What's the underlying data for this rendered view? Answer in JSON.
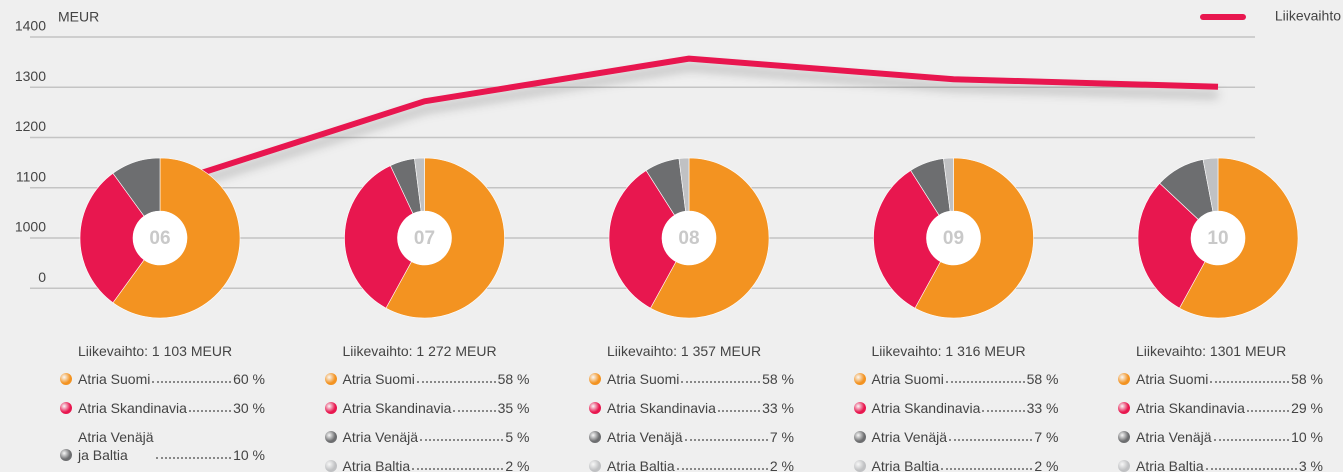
{
  "chart_data": [
    {
      "type": "line",
      "y_label": "MEUR",
      "series": [
        {
          "name": "Liikevaihto",
          "color": "#e8174f",
          "values": [
            1103,
            1272,
            1357,
            1316,
            1301
          ]
        }
      ],
      "ylim": [
        1000,
        1400
      ],
      "yticks": [
        0,
        1000,
        1100,
        1200,
        1300,
        1400
      ],
      "axis_break": true,
      "grid": true,
      "legend": "upper right"
    },
    {
      "type": "pie",
      "center_label": "06",
      "title": "Liikevaihto: 1 103 MEUR",
      "categories": [
        "Atria Suomi",
        "Atria Skandinavia",
        "Atria Venäjä\nja Baltia"
      ],
      "values": [
        60,
        30,
        10
      ],
      "value_labels": [
        "60 %",
        "30 %",
        "10 %"
      ],
      "colors": [
        "#f39321",
        "#e8174f",
        "#6d6e70"
      ]
    },
    {
      "type": "pie",
      "center_label": "07",
      "title": "Liikevaihto: 1 272 MEUR",
      "categories": [
        "Atria Suomi",
        "Atria Skandinavia",
        "Atria Venäjä",
        "Atria Baltia"
      ],
      "values": [
        58,
        35,
        5,
        2
      ],
      "value_labels": [
        "58 %",
        "35 %",
        "5 %",
        "2 %"
      ],
      "colors": [
        "#f39321",
        "#e8174f",
        "#6d6e70",
        "#c0c1c3"
      ]
    },
    {
      "type": "pie",
      "center_label": "08",
      "title": "Liikevaihto: 1 357 MEUR",
      "categories": [
        "Atria Suomi",
        "Atria Skandinavia",
        "Atria Venäjä",
        "Atria Baltia"
      ],
      "values": [
        58,
        33,
        7,
        2
      ],
      "value_labels": [
        "58 %",
        "33 %",
        "7 %",
        "2 %"
      ],
      "colors": [
        "#f39321",
        "#e8174f",
        "#6d6e70",
        "#c0c1c3"
      ]
    },
    {
      "type": "pie",
      "center_label": "09",
      "title": "Liikevaihto: 1 316 MEUR",
      "categories": [
        "Atria Suomi",
        "Atria Skandinavia",
        "Atria Venäjä",
        "Atria Baltia"
      ],
      "values": [
        58,
        33,
        7,
        2
      ],
      "value_labels": [
        "58 %",
        "33 %",
        "7 %",
        "2 %"
      ],
      "colors": [
        "#f39321",
        "#e8174f",
        "#6d6e70",
        "#c0c1c3"
      ]
    },
    {
      "type": "pie",
      "center_label": "10",
      "title": "Liikevaihto: 1301 MEUR",
      "categories": [
        "Atria Suomi",
        "Atria Skandinavia",
        "Atria Venäjä",
        "Atria Baltia"
      ],
      "values": [
        58,
        29,
        10,
        3
      ],
      "value_labels": [
        "58 %",
        "29 %",
        "10 %",
        "3 %"
      ],
      "colors": [
        "#f39321",
        "#e8174f",
        "#6d6e70",
        "#c0c1c3"
      ]
    }
  ]
}
